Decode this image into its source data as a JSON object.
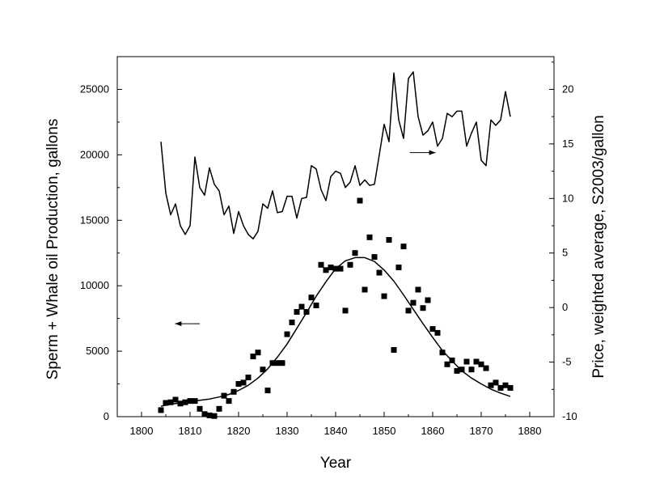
{
  "chart_data": {
    "type": "scatter",
    "xlabel": "Year",
    "ylabel_left": "Sperm + Whale oil Production, gallons",
    "ylabel_right": "Price, weighted average, S2003/gallon",
    "xlim": [
      1795,
      1885
    ],
    "ylim_left": [
      0,
      27500
    ],
    "ylim_right": [
      -10,
      23
    ],
    "x_ticks": [
      1800,
      1810,
      1820,
      1830,
      1840,
      1850,
      1860,
      1870,
      1880
    ],
    "y_left_ticks": [
      0,
      5000,
      10000,
      15000,
      20000,
      25000
    ],
    "y_right_ticks": [
      -10,
      -5,
      0,
      5,
      10,
      15,
      20
    ],
    "series": [
      {
        "kind": "scatter",
        "axis": "left",
        "x": [
          1804,
          1805,
          1806,
          1807,
          1808,
          1809,
          1810,
          1811,
          1812,
          1813,
          1814,
          1815,
          1816,
          1817,
          1818,
          1819,
          1820,
          1821,
          1822,
          1823,
          1824,
          1825,
          1826,
          1827,
          1828,
          1829,
          1830,
          1831,
          1832,
          1833,
          1834,
          1835,
          1836,
          1837,
          1838,
          1839,
          1840,
          1841,
          1842,
          1843,
          1844,
          1845,
          1846,
          1847,
          1848,
          1849,
          1850,
          1851,
          1852,
          1853,
          1854,
          1855,
          1856,
          1857,
          1858,
          1859,
          1860,
          1861,
          1862,
          1863,
          1864,
          1865,
          1866,
          1867,
          1868,
          1869,
          1870,
          1871,
          1872,
          1873,
          1874,
          1875,
          1876
        ],
        "y": [
          500,
          1050,
          1100,
          1300,
          1000,
          1100,
          1200,
          1200,
          600,
          200,
          100,
          50,
          600,
          1600,
          1200,
          1900,
          2500,
          2600,
          3000,
          4600,
          4900,
          3600,
          2000,
          4100,
          4100,
          4100,
          6300,
          7200,
          8000,
          8400,
          8000,
          9100,
          8500,
          11600,
          11200,
          11400,
          11300,
          11300,
          8100,
          11600,
          12500,
          16500,
          9700,
          13700,
          12200,
          11000,
          9200,
          13500,
          5100,
          11400,
          13000,
          8100,
          8700,
          9700,
          8300,
          8900,
          6700,
          6400,
          4900,
          4000,
          4300,
          3500,
          3600,
          4200,
          3600,
          4200,
          4000,
          3700,
          2400,
          2600,
          2200,
          2400,
          2200
        ]
      },
      {
        "kind": "line",
        "axis": "right",
        "x": [
          1804,
          1805,
          1806,
          1807,
          1808,
          1809,
          1810,
          1811,
          1812,
          1813,
          1814,
          1815,
          1816,
          1817,
          1818,
          1819,
          1820,
          1821,
          1822,
          1823,
          1824,
          1825,
          1826,
          1827,
          1828,
          1829,
          1830,
          1831,
          1832,
          1833,
          1834,
          1835,
          1836,
          1837,
          1838,
          1839,
          1840,
          1841,
          1842,
          1843,
          1844,
          1845,
          1846,
          1847,
          1848,
          1849,
          1850,
          1851,
          1852,
          1853,
          1854,
          1855,
          1856,
          1857,
          1858,
          1859,
          1860,
          1861,
          1862,
          1863,
          1864,
          1865,
          1866,
          1867,
          1868,
          1869,
          1870,
          1871,
          1872,
          1873,
          1874,
          1875,
          1876
        ],
        "y": [
          15.2,
          10.5,
          8.5,
          9.5,
          7.5,
          6.7,
          7.5,
          13.8,
          11.0,
          10.3,
          12.8,
          11.3,
          10.7,
          8.5,
          9.3,
          6.8,
          8.8,
          7.5,
          6.7,
          6.3,
          7.0,
          9.5,
          9.1,
          10.7,
          8.7,
          8.8,
          10.2,
          10.2,
          8.2,
          10.0,
          10.1,
          13.0,
          12.7,
          10.8,
          9.8,
          12.0,
          12.5,
          12.3,
          11.0,
          11.5,
          13.0,
          11.2,
          11.7,
          11.2,
          11.3,
          14.0,
          16.8,
          15.2,
          21.5,
          17.2,
          15.5,
          21.0,
          21.6,
          17.5,
          15.8,
          16.2,
          17.0,
          14.8,
          15.5,
          17.8,
          17.5,
          18.0,
          18.0,
          14.8,
          16.0,
          17.0,
          13.5,
          13.0,
          17.2,
          16.7,
          17.2,
          19.8,
          17.5
        ]
      },
      {
        "kind": "line",
        "axis": "left",
        "style": "fit",
        "x": [
          1804,
          1806,
          1808,
          1810,
          1812,
          1814,
          1816,
          1818,
          1820,
          1822,
          1824,
          1826,
          1828,
          1830,
          1832,
          1834,
          1836,
          1838,
          1840,
          1842,
          1844,
          1846,
          1848,
          1850,
          1852,
          1854,
          1856,
          1858,
          1860,
          1862,
          1864,
          1866,
          1868,
          1870,
          1872,
          1874,
          1876
        ],
        "y": [
          800,
          950,
          1050,
          1150,
          1250,
          1350,
          1500,
          1700,
          2000,
          2400,
          2950,
          3650,
          4550,
          5550,
          6750,
          7950,
          9200,
          10300,
          11300,
          11900,
          12150,
          12150,
          11850,
          11200,
          10350,
          9300,
          8200,
          7100,
          6050,
          5050,
          4250,
          3500,
          2950,
          2500,
          2100,
          1800,
          1550
        ]
      }
    ],
    "annotations": [
      {
        "type": "arrow",
        "direction": "right",
        "axis": "right",
        "x_from": 1855.3,
        "x_to": 1860.6,
        "y": 14.2
      },
      {
        "type": "arrow",
        "direction": "left",
        "axis": "left",
        "x_from": 1812.0,
        "x_to": 1806.9,
        "y": 7100
      }
    ],
    "grid": false,
    "legend": "none",
    "colors": {
      "marks": "#000000",
      "background": "#ffffff"
    }
  }
}
